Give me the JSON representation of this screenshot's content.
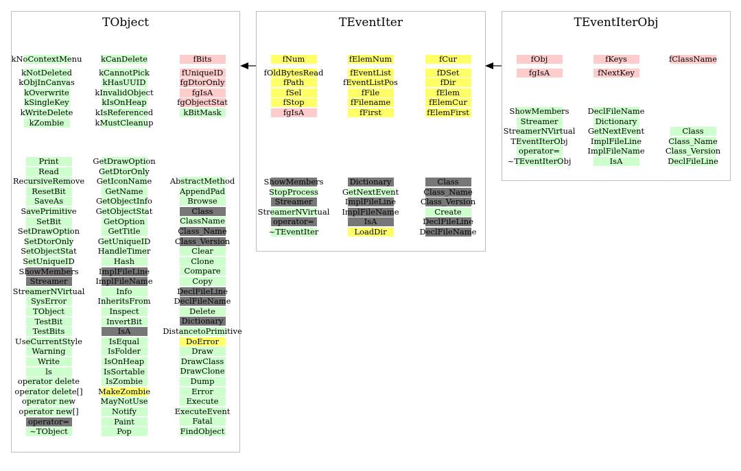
{
  "colors": {
    "g": "#ccffcc",
    "p": "#ffcccc",
    "y": "#ffff66",
    "d": "#777777",
    "border": "#bdbdbd"
  },
  "panels": [
    {
      "title": "TObject",
      "groups": [
        {
          "columns": [
            {
              "items": [
                {
                  "t": "kNoContextMenu",
                  "c": "g"
                },
                {
                  "t": "",
                  "c": "n"
                },
                {
                  "t": "kNotDeleted",
                  "c": "g"
                },
                {
                  "t": "kObjInCanvas",
                  "c": "g"
                },
                {
                  "t": "kOverwrite",
                  "c": "g"
                },
                {
                  "t": "kSingleKey",
                  "c": "g"
                },
                {
                  "t": "kWriteDelete",
                  "c": "g"
                },
                {
                  "t": "kZombie",
                  "c": "g"
                }
              ]
            },
            {
              "items": [
                {
                  "t": "kCanDelete",
                  "c": "g"
                },
                {
                  "t": "",
                  "c": "n"
                },
                {
                  "t": "kCannotPick",
                  "c": "g"
                },
                {
                  "t": "kHasUUID",
                  "c": "g"
                },
                {
                  "t": "kInvalidObject",
                  "c": "g"
                },
                {
                  "t": "kIsOnHeap",
                  "c": "g"
                },
                {
                  "t": "kIsReferenced",
                  "c": "g"
                },
                {
                  "t": "kMustCleanup",
                  "c": "g"
                }
              ]
            },
            {
              "items": [
                {
                  "t": "fBits",
                  "c": "p"
                },
                {
                  "t": "",
                  "c": "n"
                },
                {
                  "t": "fUniqueID",
                  "c": "p"
                },
                {
                  "t": "fgDtorOnly",
                  "c": "p"
                },
                {
                  "t": "fgIsA",
                  "c": "p"
                },
                {
                  "t": "fgObjectStat",
                  "c": "p"
                },
                {
                  "t": "kBitMask",
                  "c": "g"
                }
              ]
            }
          ]
        },
        {
          "columns": [
            {
              "items": [
                {
                  "t": "Print",
                  "c": "g"
                },
                {
                  "t": "Read",
                  "c": "g"
                },
                {
                  "t": "RecursiveRemove",
                  "c": "g"
                },
                {
                  "t": "ResetBit",
                  "c": "g"
                },
                {
                  "t": "SaveAs",
                  "c": "g"
                },
                {
                  "t": "SavePrimitive",
                  "c": "g"
                },
                {
                  "t": "SetBit",
                  "c": "g"
                },
                {
                  "t": "SetDrawOption",
                  "c": "g"
                },
                {
                  "t": "SetDtorOnly",
                  "c": "g"
                },
                {
                  "t": "SetObjectStat",
                  "c": "g"
                },
                {
                  "t": "SetUniqueID",
                  "c": "g"
                },
                {
                  "t": "ShowMembers",
                  "c": "d"
                },
                {
                  "t": "Streamer",
                  "c": "d"
                },
                {
                  "t": "StreamerNVirtual",
                  "c": "g"
                },
                {
                  "t": "SysError",
                  "c": "g"
                },
                {
                  "t": "TObject",
                  "c": "g"
                },
                {
                  "t": "TestBit",
                  "c": "g"
                },
                {
                  "t": "TestBits",
                  "c": "g"
                },
                {
                  "t": "UseCurrentStyle",
                  "c": "g"
                },
                {
                  "t": "Warning",
                  "c": "g"
                },
                {
                  "t": "Write",
                  "c": "g"
                },
                {
                  "t": "ls",
                  "c": "g"
                },
                {
                  "t": "operator delete",
                  "c": "g"
                },
                {
                  "t": "operator delete[]",
                  "c": "g"
                },
                {
                  "t": "operator new",
                  "c": "g"
                },
                {
                  "t": "operator new[]",
                  "c": "g"
                },
                {
                  "t": "operator=",
                  "c": "d"
                },
                {
                  "t": "~TObject",
                  "c": "g"
                }
              ]
            },
            {
              "items": [
                {
                  "t": "GetDrawOption",
                  "c": "g"
                },
                {
                  "t": "GetDtorOnly",
                  "c": "g"
                },
                {
                  "t": "GetIconName",
                  "c": "g"
                },
                {
                  "t": "GetName",
                  "c": "g"
                },
                {
                  "t": "GetObjectInfo",
                  "c": "g"
                },
                {
                  "t": "GetObjectStat",
                  "c": "g"
                },
                {
                  "t": "GetOption",
                  "c": "g"
                },
                {
                  "t": "GetTitle",
                  "c": "g"
                },
                {
                  "t": "GetUniqueID",
                  "c": "g"
                },
                {
                  "t": "HandleTimer",
                  "c": "g"
                },
                {
                  "t": "Hash",
                  "c": "g"
                },
                {
                  "t": "ImplFileLine",
                  "c": "d"
                },
                {
                  "t": "ImplFileName",
                  "c": "d"
                },
                {
                  "t": "Info",
                  "c": "g"
                },
                {
                  "t": "InheritsFrom",
                  "c": "g"
                },
                {
                  "t": "Inspect",
                  "c": "g"
                },
                {
                  "t": "InvertBit",
                  "c": "g"
                },
                {
                  "t": "IsA",
                  "c": "d"
                },
                {
                  "t": "IsEqual",
                  "c": "g"
                },
                {
                  "t": "IsFolder",
                  "c": "g"
                },
                {
                  "t": "IsOnHeap",
                  "c": "g"
                },
                {
                  "t": "IsSortable",
                  "c": "g"
                },
                {
                  "t": "IsZombie",
                  "c": "g"
                },
                {
                  "t": "MakeZombie",
                  "c": "y"
                },
                {
                  "t": "MayNotUse",
                  "c": "g"
                },
                {
                  "t": "Notify",
                  "c": "g"
                },
                {
                  "t": "Paint",
                  "c": "g"
                },
                {
                  "t": "Pop",
                  "c": "g"
                }
              ]
            },
            {
              "items": [
                {
                  "t": "AbstractMethod",
                  "c": "g"
                },
                {
                  "t": "AppendPad",
                  "c": "g"
                },
                {
                  "t": "Browse",
                  "c": "g"
                },
                {
                  "t": "Class",
                  "c": "d"
                },
                {
                  "t": "ClassName",
                  "c": "g"
                },
                {
                  "t": "Class_Name",
                  "c": "d"
                },
                {
                  "t": "Class_Version",
                  "c": "d"
                },
                {
                  "t": "Clear",
                  "c": "g"
                },
                {
                  "t": "Clone",
                  "c": "g"
                },
                {
                  "t": "Compare",
                  "c": "g"
                },
                {
                  "t": "Copy",
                  "c": "g"
                },
                {
                  "t": "DeclFileLine",
                  "c": "d"
                },
                {
                  "t": "DeclFileName",
                  "c": "d"
                },
                {
                  "t": "Delete",
                  "c": "g"
                },
                {
                  "t": "Dictionary",
                  "c": "d"
                },
                {
                  "t": "DistancetoPrimitive",
                  "c": "g"
                },
                {
                  "t": "DoError",
                  "c": "y"
                },
                {
                  "t": "Draw",
                  "c": "g"
                },
                {
                  "t": "DrawClass",
                  "c": "g"
                },
                {
                  "t": "DrawClone",
                  "c": "g"
                },
                {
                  "t": "Dump",
                  "c": "g"
                },
                {
                  "t": "Error",
                  "c": "g"
                },
                {
                  "t": "Execute",
                  "c": "g"
                },
                {
                  "t": "ExecuteEvent",
                  "c": "g"
                },
                {
                  "t": "Fatal",
                  "c": "g"
                },
                {
                  "t": "FindObject",
                  "c": "g"
                }
              ]
            }
          ]
        }
      ]
    },
    {
      "title": "TEventIter",
      "groups": [
        {
          "columns": [
            {
              "items": [
                {
                  "t": "fNum",
                  "c": "y"
                },
                {
                  "t": "",
                  "c": "n"
                },
                {
                  "t": "fOldBytesRead",
                  "c": "y"
                },
                {
                  "t": "fPath",
                  "c": "y"
                },
                {
                  "t": "fSel",
                  "c": "y"
                },
                {
                  "t": "fStop",
                  "c": "y"
                },
                {
                  "t": "fgIsA",
                  "c": "p"
                }
              ]
            },
            {
              "items": [
                {
                  "t": "fElemNum",
                  "c": "y"
                },
                {
                  "t": "",
                  "c": "n"
                },
                {
                  "t": "fEventList",
                  "c": "y"
                },
                {
                  "t": "fEventListPos",
                  "c": "y"
                },
                {
                  "t": "fFile",
                  "c": "y"
                },
                {
                  "t": "fFilename",
                  "c": "y"
                },
                {
                  "t": "fFirst",
                  "c": "y"
                }
              ]
            },
            {
              "items": [
                {
                  "t": "fCur",
                  "c": "y"
                },
                {
                  "t": "",
                  "c": "n"
                },
                {
                  "t": "fDSet",
                  "c": "y"
                },
                {
                  "t": "fDir",
                  "c": "y"
                },
                {
                  "t": "fElem",
                  "c": "y"
                },
                {
                  "t": "fElemCur",
                  "c": "y"
                },
                {
                  "t": "fElemFirst",
                  "c": "y"
                }
              ]
            }
          ]
        },
        {
          "columns": [
            {
              "items": [
                {
                  "t": "ShowMembers",
                  "c": "d"
                },
                {
                  "t": "StopProcess",
                  "c": "g"
                },
                {
                  "t": "Streamer",
                  "c": "d"
                },
                {
                  "t": "StreamerNVirtual",
                  "c": "g"
                },
                {
                  "t": "operator=",
                  "c": "d"
                },
                {
                  "t": "~TEventIter",
                  "c": "g"
                }
              ]
            },
            {
              "items": [
                {
                  "t": "Dictionary",
                  "c": "d"
                },
                {
                  "t": "GetNextEvent",
                  "c": "g"
                },
                {
                  "t": "ImplFileLine",
                  "c": "d"
                },
                {
                  "t": "ImplFileName",
                  "c": "d"
                },
                {
                  "t": "IsA",
                  "c": "d"
                },
                {
                  "t": "LoadDir",
                  "c": "y"
                }
              ]
            },
            {
              "items": [
                {
                  "t": "Class",
                  "c": "d"
                },
                {
                  "t": "Class_Name",
                  "c": "d"
                },
                {
                  "t": "Class_Version",
                  "c": "d"
                },
                {
                  "t": "Create",
                  "c": "g"
                },
                {
                  "t": "DeclFileLine",
                  "c": "d"
                },
                {
                  "t": "DeclFileName",
                  "c": "d"
                }
              ]
            }
          ]
        }
      ]
    },
    {
      "title": "TEventIterObj",
      "groups": [
        {
          "columns": [
            {
              "items": [
                {
                  "t": "fObj",
                  "c": "p"
                },
                {
                  "t": "",
                  "c": "n"
                },
                {
                  "t": "fgIsA",
                  "c": "p"
                }
              ]
            },
            {
              "items": [
                {
                  "t": "fKeys",
                  "c": "p"
                },
                {
                  "t": "",
                  "c": "n"
                },
                {
                  "t": "fNextKey",
                  "c": "p"
                }
              ]
            },
            {
              "items": [
                {
                  "t": "fClassName",
                  "c": "p"
                }
              ]
            }
          ]
        },
        {
          "columns": [
            {
              "items": [
                {
                  "t": "ShowMembers",
                  "c": "g"
                },
                {
                  "t": "Streamer",
                  "c": "g"
                },
                {
                  "t": "StreamerNVirtual",
                  "c": "g"
                },
                {
                  "t": "TEventIterObj",
                  "c": "g"
                },
                {
                  "t": "operator=",
                  "c": "g"
                },
                {
                  "t": "~TEventIterObj",
                  "c": "g"
                }
              ]
            },
            {
              "items": [
                {
                  "t": "DeclFileName",
                  "c": "g"
                },
                {
                  "t": "Dictionary",
                  "c": "g"
                },
                {
                  "t": "GetNextEvent",
                  "c": "g"
                },
                {
                  "t": "ImplFileLine",
                  "c": "g"
                },
                {
                  "t": "ImplFileName",
                  "c": "g"
                },
                {
                  "t": "IsA",
                  "c": "g"
                }
              ]
            },
            {
              "items": [
                {
                  "t": "Class",
                  "c": "g"
                },
                {
                  "t": "Class_Name",
                  "c": "g"
                },
                {
                  "t": "Class_Version",
                  "c": "g"
                },
                {
                  "t": "DeclFileLine",
                  "c": "g"
                }
              ]
            }
          ]
        }
      ]
    }
  ]
}
